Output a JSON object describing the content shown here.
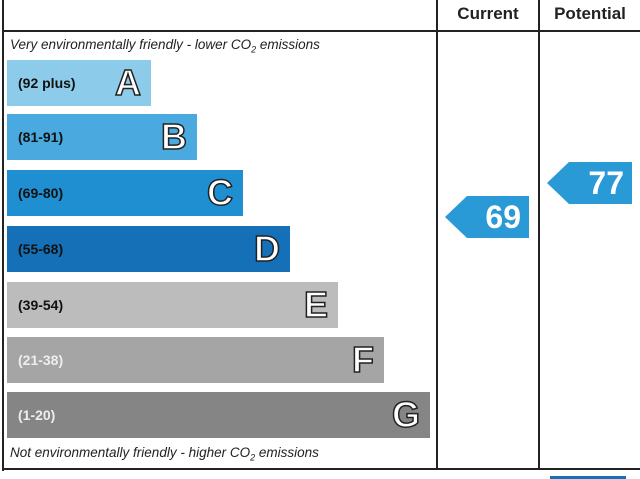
{
  "header": {
    "current": "Current",
    "potential": "Potential"
  },
  "top_note": "Very environmentally friendly - lower CO",
  "bottom_note": "Not environmentally friendly - higher CO",
  "subscript": "2",
  "note_suffix": " emissions",
  "chart_data": {
    "type": "bar",
    "categories": [
      "A",
      "B",
      "C",
      "D",
      "E",
      "F",
      "G"
    ],
    "bands": [
      {
        "letter": "A",
        "range": "(92 plus)",
        "color": "#8dcbeb"
      },
      {
        "letter": "B",
        "range": "(81-91)",
        "color": "#4aa9de"
      },
      {
        "letter": "C",
        "range": "(69-80)",
        "color": "#1f8fd1"
      },
      {
        "letter": "D",
        "range": "(55-68)",
        "color": "#1570b7"
      },
      {
        "letter": "E",
        "range": "(39-54)",
        "color": "#bcbcbc"
      },
      {
        "letter": "F",
        "range": "(21-38)",
        "color": "#a5a5a5"
      },
      {
        "letter": "G",
        "range": "(1-20)",
        "color": "#858585"
      }
    ],
    "current": {
      "value": "69",
      "band": "C",
      "color": "#2a9ad6"
    },
    "potential": {
      "value": "77",
      "band": "C",
      "color": "#2a9ad6"
    }
  }
}
